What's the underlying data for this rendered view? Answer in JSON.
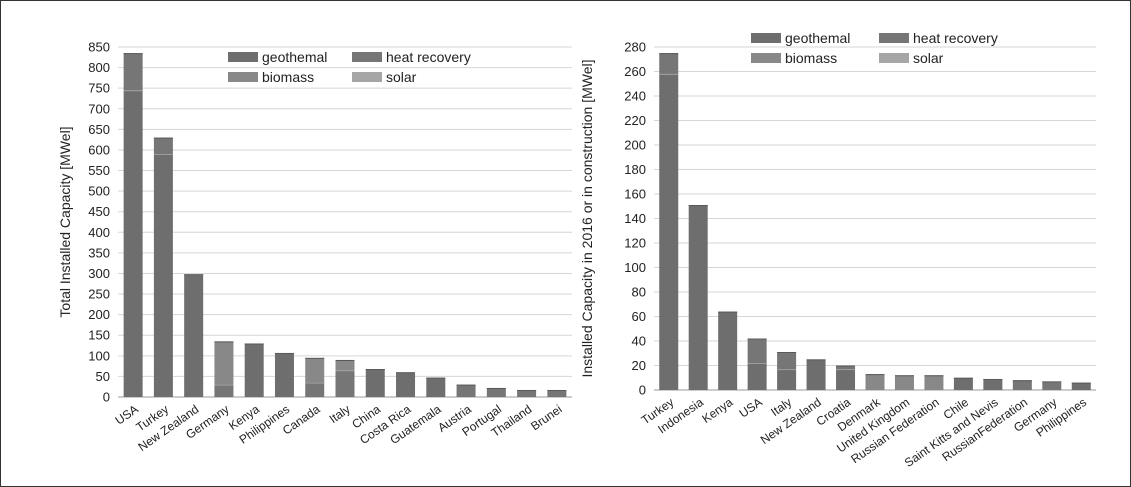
{
  "chart_data": [
    {
      "type": "bar",
      "stacked": true,
      "ylabel": "Total Installed Capacity [MWel]",
      "ylim": [
        0,
        850
      ],
      "yticks": [
        0,
        50,
        100,
        150,
        200,
        250,
        300,
        350,
        400,
        450,
        500,
        550,
        600,
        650,
        700,
        750,
        800,
        850
      ],
      "grid": true,
      "legend_position": "top-center",
      "legend": [
        "geothemal",
        "heat recovery",
        "biomass",
        "solar"
      ],
      "categories": [
        "USA",
        "Turkey",
        "New Zealand",
        "Germany",
        "Kenya",
        "Philippines",
        "Canada",
        "Italy",
        "China",
        "Costa Rica",
        "Guatemala",
        "Austria",
        "Portugal",
        "Thailand",
        "Brunei"
      ],
      "series": [
        {
          "name": "geothemal",
          "color": "#6e6e6e",
          "values": [
            745,
            590,
            298,
            0,
            130,
            107,
            0,
            0,
            68,
            60,
            47,
            0,
            0,
            0,
            0
          ]
        },
        {
          "name": "heat recovery",
          "color": "#767676",
          "values": [
            90,
            40,
            0,
            30,
            0,
            0,
            35,
            65,
            0,
            0,
            0,
            30,
            22,
            17,
            17
          ]
        },
        {
          "name": "biomass",
          "color": "#888888",
          "values": [
            0,
            0,
            0,
            105,
            0,
            0,
            60,
            25,
            0,
            0,
            0,
            0,
            0,
            0,
            0
          ]
        },
        {
          "name": "solar",
          "color": "#a6a6a6",
          "values": [
            0,
            0,
            0,
            0,
            0,
            0,
            0,
            0,
            0,
            0,
            0,
            0,
            0,
            0,
            0
          ]
        }
      ]
    },
    {
      "type": "bar",
      "stacked": true,
      "ylabel": "Installed Capacity in 2016 or in construction [MWel]",
      "ylim": [
        0,
        280
      ],
      "yticks": [
        0,
        20,
        40,
        60,
        80,
        100,
        120,
        140,
        160,
        180,
        200,
        220,
        240,
        260,
        280
      ],
      "grid": true,
      "legend_position": "top-center",
      "legend": [
        "geothemal",
        "heat recovery",
        "biomass",
        "solar"
      ],
      "categories": [
        "Turkey",
        "Indonesia",
        "Kenya",
        "USA",
        "Italy",
        "New Zealand",
        "Croatia",
        "Denmark",
        "United Kingdom",
        "Russian Federation",
        "Chile",
        "Saint Kitts and Nevis",
        "RussianFederation",
        "Germany",
        "Philippines"
      ],
      "series": [
        {
          "name": "geothemal",
          "color": "#6e6e6e",
          "values": [
            258,
            151,
            64,
            22,
            17,
            25,
            17,
            0,
            0,
            0,
            10,
            9,
            0,
            0,
            6
          ]
        },
        {
          "name": "heat recovery",
          "color": "#767676",
          "values": [
            17,
            0,
            0,
            20,
            14,
            0,
            3,
            0,
            0,
            0,
            0,
            0,
            8,
            7,
            0
          ]
        },
        {
          "name": "biomass",
          "color": "#888888",
          "values": [
            0,
            0,
            0,
            0,
            0,
            0,
            0,
            13,
            12,
            12,
            0,
            0,
            0,
            0,
            0
          ]
        },
        {
          "name": "solar",
          "color": "#a6a6a6",
          "values": [
            0,
            0,
            0,
            0,
            0,
            0,
            0,
            0,
            0,
            0,
            0,
            0,
            0,
            0,
            0
          ]
        }
      ]
    }
  ]
}
